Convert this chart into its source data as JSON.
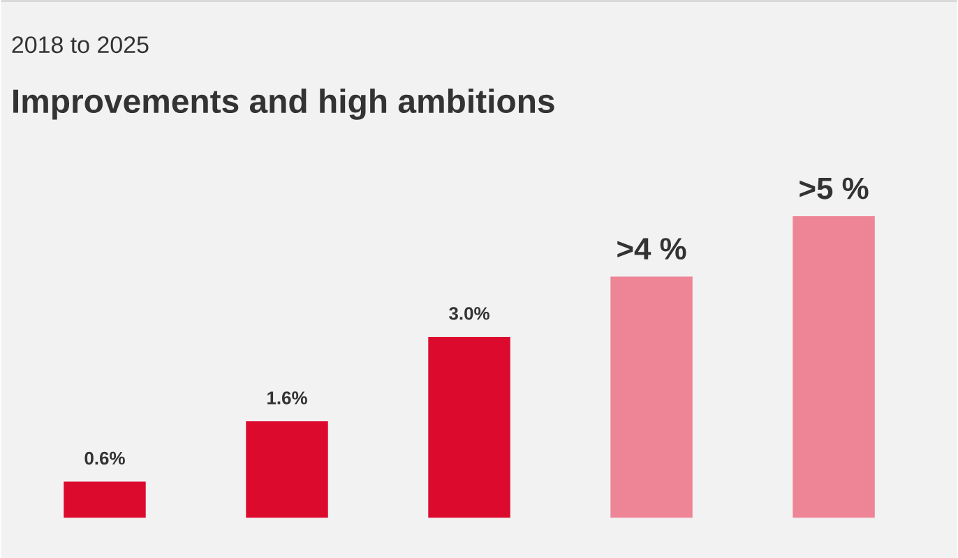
{
  "chart_data": {
    "type": "bar",
    "subtitle": "2018 to 2025",
    "title": "Improvements and high ambitions",
    "categories": [
      null,
      null,
      null,
      null,
      null
    ],
    "values": [
      0.6,
      1.6,
      3.0,
      4,
      5
    ],
    "colors": [
      "#dc0a2d",
      "#dc0a2d",
      "#dc0a2d",
      "#ee8596",
      "#ee8596"
    ],
    "value_labels": [
      "0.6%",
      "1.6%",
      "3.0%",
      ">4 %",
      ">5 %"
    ]
  }
}
